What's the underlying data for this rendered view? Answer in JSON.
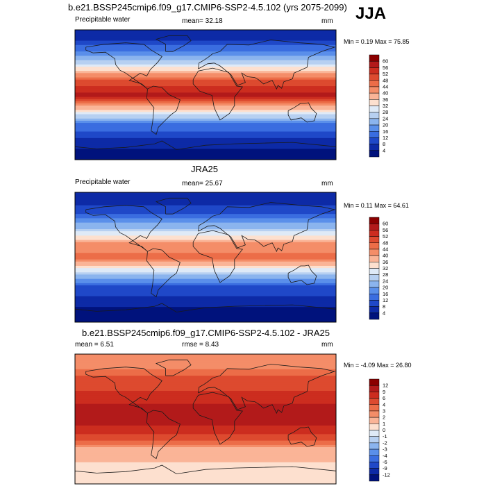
{
  "figure": {
    "season": "JJA",
    "units": "mm"
  },
  "panels": [
    {
      "title": "b.e21.BSSP245cmip6.f09_g17.CMIP6-SSP2-4.5.102 (yrs 2075-2099)",
      "left_label": "Precipitable water",
      "center_label": "mean=  32.18",
      "right_label": "mm",
      "minmax": "Min =   0.19 Max =  75.85"
    },
    {
      "title": "JRA25",
      "left_label": "Precipitable water",
      "center_label": "mean=  25.67",
      "right_label": "mm",
      "minmax": "Min =   0.11 Max =  64.61"
    },
    {
      "title": "b.e21.BSSP245cmip6.f09_g17.CMIP6-SSP2-4.5.102 - JRA25",
      "left_label": "mean =   6.51",
      "center_label": "rmse =   8.43",
      "right_label": "mm",
      "minmax": "Min =  -4.09 Max =  26.80"
    }
  ],
  "chart_data": [
    {
      "type": "heatmap",
      "title": "b.e21.BSSP245cmip6.f09_g17.CMIP6-SSP2-4.5.102 (yrs 2075-2099)",
      "variable": "Precipitable water",
      "units": "mm",
      "mean": 32.18,
      "min": 0.19,
      "max": 75.85,
      "colorbar_levels": [
        "60",
        "56",
        "52",
        "48",
        "44",
        "40",
        "36",
        "32",
        "28",
        "24",
        "20",
        "16",
        "12",
        "8",
        "4"
      ],
      "colorbar_colors": [
        "#8b0000",
        "#b21a1a",
        "#cc2d1f",
        "#dd4a2f",
        "#ec6d48",
        "#f48d68",
        "#fab497",
        "#fde0cf",
        "#dfeaf7",
        "#b7d0f1",
        "#8bb4ee",
        "#5a8fea",
        "#3a6de0",
        "#1f48c8",
        "#0d2aa6",
        "#00127c"
      ],
      "field_profile": {
        "lat": [
          80,
          60,
          40,
          20,
          0,
          -20,
          -40,
          -60,
          -80
        ],
        "value": [
          6,
          16,
          30,
          48,
          58,
          36,
          16,
          8,
          3
        ]
      }
    },
    {
      "type": "heatmap",
      "title": "JRA25",
      "variable": "Precipitable water",
      "units": "mm",
      "mean": 25.67,
      "min": 0.11,
      "max": 64.61,
      "colorbar_levels": [
        "60",
        "56",
        "52",
        "48",
        "44",
        "40",
        "36",
        "32",
        "28",
        "24",
        "20",
        "16",
        "12",
        "8",
        "4"
      ],
      "colorbar_colors": [
        "#8b0000",
        "#b21a1a",
        "#cc2d1f",
        "#dd4a2f",
        "#ec6d48",
        "#f48d68",
        "#fab497",
        "#fde0cf",
        "#dfeaf7",
        "#b7d0f1",
        "#8bb4ee",
        "#5a8fea",
        "#3a6de0",
        "#1f48c8",
        "#0d2aa6",
        "#00127c"
      ],
      "field_profile": {
        "lat": [
          80,
          60,
          40,
          20,
          0,
          -20,
          -40,
          -60,
          -80
        ],
        "value": [
          5,
          12,
          24,
          40,
          46,
          28,
          12,
          6,
          2
        ]
      }
    },
    {
      "type": "heatmap",
      "title": "b.e21.BSSP245cmip6.f09_g17.CMIP6-SSP2-4.5.102 - JRA25",
      "variable": "Precipitable water",
      "units": "mm",
      "mean": 6.51,
      "rmse": 8.43,
      "min": -4.09,
      "max": 26.8,
      "colorbar_levels": [
        "12",
        "9",
        "6",
        "4",
        "3",
        "2",
        "1",
        "0",
        "-1",
        "-2",
        "-3",
        "-4",
        "-6",
        "-9",
        "-12"
      ],
      "colorbar_colors": [
        "#8b0000",
        "#b21a1a",
        "#cc2d1f",
        "#dd4a2f",
        "#ec6d48",
        "#f48d68",
        "#fab497",
        "#fde0cf",
        "#dfeaf7",
        "#b7d0f1",
        "#8bb4ee",
        "#5a8fea",
        "#3a6de0",
        "#1f48c8",
        "#0d2aa6",
        "#00127c"
      ],
      "field_profile": {
        "lat": [
          80,
          60,
          40,
          20,
          0,
          -20,
          -40,
          -60,
          -80
        ],
        "value": [
          2,
          4,
          6,
          9,
          12,
          6,
          2,
          1,
          0.5
        ]
      }
    }
  ]
}
